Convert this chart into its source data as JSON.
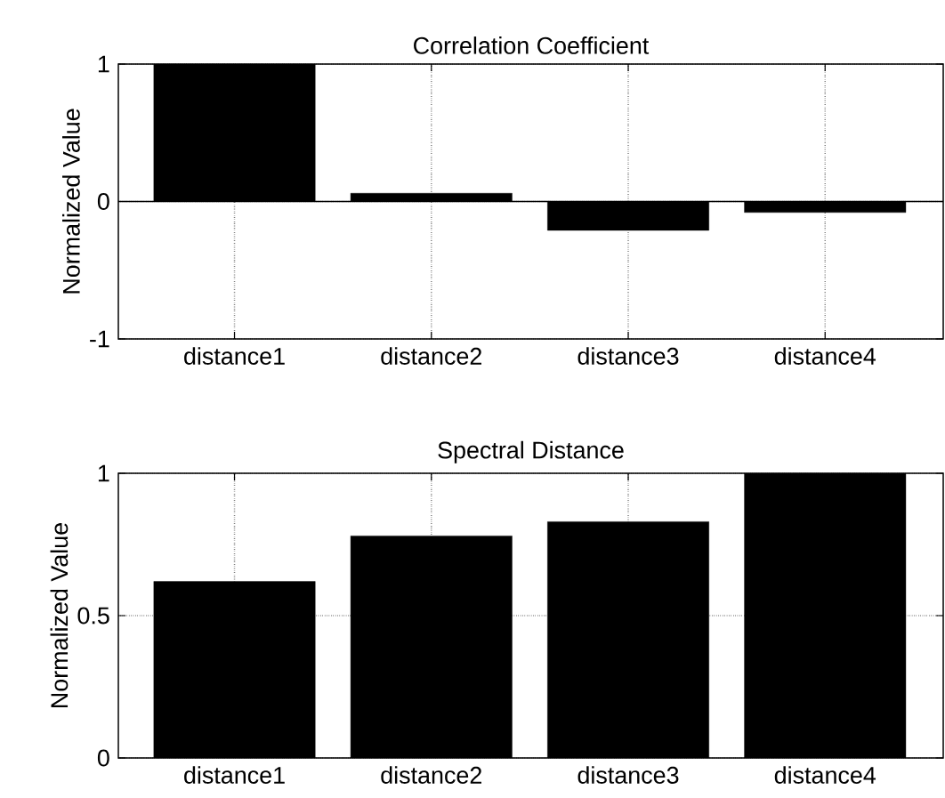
{
  "chart_data": [
    {
      "type": "bar",
      "title": "Correlation Coefficient",
      "ylabel": "Normalized Value",
      "categories": [
        "distance1",
        "distance2",
        "distance3",
        "distance4"
      ],
      "values": [
        1,
        0.06,
        -0.21,
        -0.08
      ],
      "color": "#000000",
      "ylim": [
        -1,
        1
      ],
      "yticks": [
        -1,
        0,
        1
      ],
      "grid": true
    },
    {
      "type": "bar",
      "title": "Spectral Distance",
      "ylabel": "Normalized Value",
      "categories": [
        "distance1",
        "distance2",
        "distance3",
        "distance4"
      ],
      "values": [
        0.62,
        0.78,
        0.83,
        1
      ],
      "color": "#000000",
      "ylim": [
        0,
        1
      ],
      "yticks": [
        0,
        0.5,
        1
      ],
      "grid": true
    }
  ]
}
